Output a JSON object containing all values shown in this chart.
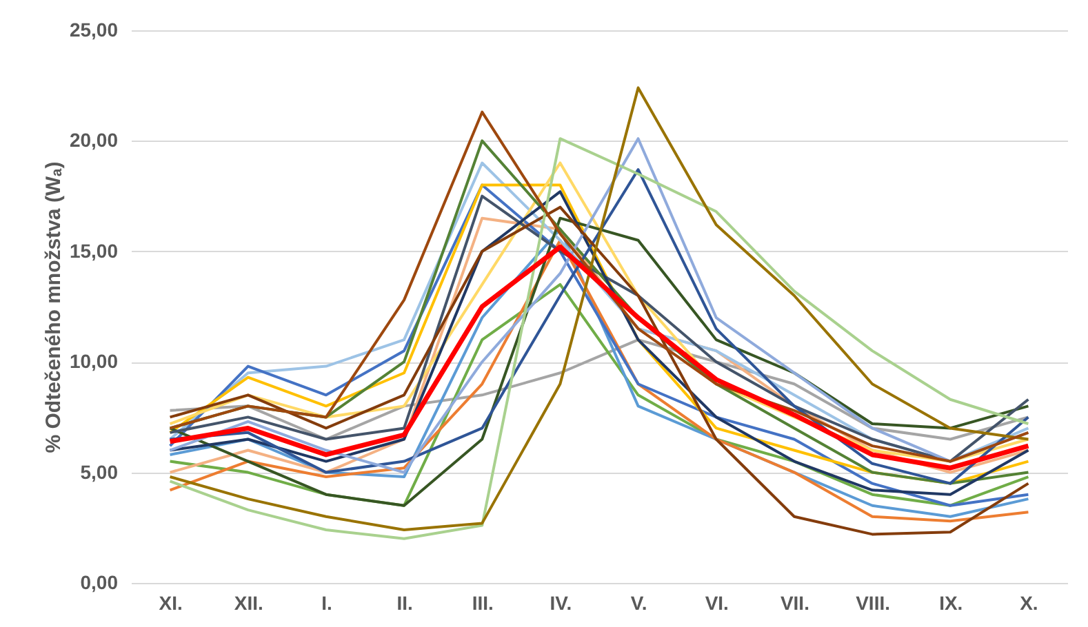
{
  "chart_data": {
    "type": "line",
    "ylabel": "% Odtečeného množstva (Wₐ)",
    "categories": [
      "XI.",
      "XII.",
      "I.",
      "II.",
      "III.",
      "IV.",
      "V.",
      "VI.",
      "VII.",
      "VIII.",
      "IX.",
      "X."
    ],
    "ylim": [
      0,
      25
    ],
    "yticks": [
      {
        "value": 0,
        "label": "0,00"
      },
      {
        "value": 5,
        "label": "5,00"
      },
      {
        "value": 10,
        "label": "10,00"
      },
      {
        "value": 15,
        "label": "15,00"
      },
      {
        "value": 20,
        "label": "20,00"
      },
      {
        "value": 25,
        "label": "25,00"
      }
    ],
    "grid": "y",
    "marker": "none",
    "line_style": "solid",
    "series": [
      {
        "color": "#a5a5a5",
        "values": [
          7.8,
          8.0,
          6.5,
          8.0,
          8.5,
          9.5,
          11.0,
          10.0,
          9.0,
          7.0,
          6.5,
          7.5
        ]
      },
      {
        "color": "#70ad47",
        "values": [
          5.5,
          5.0,
          4.0,
          3.5,
          11.0,
          13.5,
          8.5,
          6.5,
          5.5,
          4.0,
          3.5,
          4.8
        ]
      },
      {
        "color": "#5b9bd5",
        "values": [
          5.8,
          6.5,
          5.0,
          4.8,
          12.0,
          16.0,
          8.0,
          6.5,
          5.0,
          3.5,
          3.0,
          3.8
        ]
      },
      {
        "color": "#ed7d31",
        "values": [
          4.2,
          5.5,
          4.8,
          5.2,
          9.0,
          15.5,
          9.0,
          6.5,
          5.0,
          3.0,
          2.8,
          3.2
        ]
      },
      {
        "color": "#f4b183",
        "values": [
          5.0,
          6.0,
          5.0,
          6.5,
          16.5,
          16.0,
          11.5,
          10.5,
          8.0,
          6.0,
          5.0,
          6.0
        ]
      },
      {
        "color": "#9dc3e6",
        "values": [
          6.5,
          9.5,
          9.8,
          11.0,
          19.0,
          15.5,
          11.5,
          10.5,
          8.5,
          6.5,
          5.5,
          7.0
        ]
      },
      {
        "color": "#4472c4",
        "values": [
          6.2,
          9.8,
          8.5,
          10.5,
          18.0,
          15.0,
          9.0,
          7.5,
          6.5,
          4.5,
          3.5,
          4.0
        ]
      },
      {
        "color": "#ffc000",
        "values": [
          6.8,
          9.3,
          8.0,
          9.5,
          18.0,
          18.0,
          11.0,
          7.0,
          6.0,
          5.0,
          4.5,
          5.5
        ]
      },
      {
        "color": "#ffd966",
        "values": [
          7.2,
          8.5,
          7.5,
          8.0,
          13.5,
          19.0,
          13.0,
          9.0,
          7.5,
          6.0,
          5.5,
          6.5
        ]
      },
      {
        "color": "#375623",
        "values": [
          7.0,
          5.5,
          4.0,
          3.5,
          6.5,
          16.5,
          15.5,
          11.0,
          9.5,
          7.2,
          7.0,
          8.0
        ]
      },
      {
        "color": "#44546a",
        "values": [
          6.8,
          7.5,
          6.5,
          7.0,
          17.5,
          15.0,
          13.0,
          10.0,
          8.0,
          6.5,
          5.5,
          8.3
        ]
      },
      {
        "color": "#548235",
        "values": [
          7.0,
          8.0,
          7.5,
          10.0,
          20.0,
          16.0,
          12.0,
          9.0,
          7.0,
          5.0,
          4.5,
          5.0
        ]
      },
      {
        "color": "#203864",
        "values": [
          6.0,
          6.5,
          5.5,
          6.5,
          15.0,
          17.7,
          11.0,
          7.5,
          5.5,
          4.2,
          4.0,
          6.0
        ]
      },
      {
        "color": "#2f5597",
        "values": [
          6.5,
          6.8,
          5.0,
          5.5,
          7.0,
          13.0,
          18.7,
          11.5,
          8.0,
          5.4,
          4.5,
          7.5
        ]
      },
      {
        "color": "#8faadc",
        "values": [
          6.0,
          7.3,
          6.0,
          5.0,
          10.0,
          14.0,
          20.1,
          12.0,
          9.5,
          7.0,
          5.5,
          6.8
        ]
      },
      {
        "color": "#843c0c",
        "values": [
          7.5,
          8.5,
          7.0,
          8.5,
          15.0,
          17.0,
          13.0,
          6.5,
          3.0,
          2.2,
          2.3,
          4.5
        ]
      },
      {
        "color": "#a9d18e",
        "values": [
          4.6,
          3.3,
          2.4,
          2.0,
          2.6,
          20.1,
          18.5,
          16.8,
          13.2,
          10.5,
          8.3,
          7.2
        ]
      },
      {
        "color": "#997300",
        "values": [
          4.8,
          3.8,
          3.0,
          2.4,
          2.7,
          9.0,
          22.4,
          16.2,
          13.0,
          9.0,
          7.0,
          6.5
        ]
      },
      {
        "color": "#9e480e",
        "values": [
          7.0,
          8.0,
          7.5,
          12.8,
          21.3,
          15.8,
          11.5,
          9.0,
          7.8,
          6.2,
          5.5,
          6.8
        ]
      },
      {
        "color": "#ff0000",
        "values": [
          6.4,
          7.0,
          5.8,
          6.7,
          12.5,
          15.2,
          12.0,
          9.2,
          7.6,
          5.8,
          5.2,
          6.2
        ]
      }
    ]
  }
}
